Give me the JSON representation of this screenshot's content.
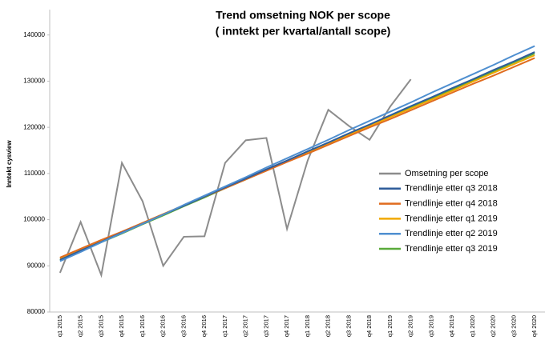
{
  "chart_data": {
    "type": "line",
    "title": "Trend omsetning NOK per scope",
    "subtitle": "( inntekt per kvartal/antall scope)",
    "y_label": "Inntekt cysview",
    "categories": [
      "q1 2015",
      "q2 2015",
      "q3 2015",
      "q4 2015",
      "q1 2016",
      "q2 2016",
      "q3 2016",
      "q4 2016",
      "q1 2017",
      "q2 2017",
      "q3 2017",
      "q4 2017",
      "q1 2018",
      "q2 2018",
      "q3 2018",
      "q4 2018",
      "q1 2019",
      "q2 2019",
      "q3 2019",
      "q4 2019",
      "q1 2020",
      "q2 2020",
      "q3 2020",
      "q4 2020"
    ],
    "series": [
      {
        "name": "Omsetning per scope",
        "color": "#8c8c8c",
        "values": [
          88500,
          99500,
          88000,
          112300,
          104000,
          90000,
          96300,
          96400,
          112300,
          117200,
          117700,
          98000,
          112800,
          123800,
          120300,
          117300,
          124500,
          130400,
          null,
          null,
          null,
          null,
          null,
          null
        ]
      },
      {
        "name": "Trendlinje etter q3 2018",
        "color": "#2e5c9a",
        "values": [
          91300,
          93300,
          95200,
          97200,
          99100,
          101100,
          103000,
          105000,
          107000,
          108900,
          110900,
          112800,
          114800,
          116700,
          118700,
          120600,
          122600,
          124600,
          126500,
          128500,
          130400,
          132400,
          134300,
          136300
        ]
      },
      {
        "name": "Trendlinje etter q4 2018",
        "color": "#e06c1f",
        "values": [
          91800,
          93700,
          95600,
          97400,
          99300,
          101200,
          103100,
          105000,
          106800,
          108700,
          110600,
          112500,
          114300,
          116200,
          118100,
          120000,
          121800,
          123700,
          125600,
          127500,
          129400,
          131200,
          133100,
          135000
        ]
      },
      {
        "name": "Trendlinje etter q1 2019",
        "color": "#f0a800",
        "values": [
          91600,
          93500,
          95400,
          97300,
          99300,
          101200,
          103100,
          105000,
          106900,
          108800,
          110700,
          112600,
          114600,
          116500,
          118400,
          120300,
          122200,
          124100,
          126000,
          127900,
          129900,
          131800,
          133700,
          135600
        ]
      },
      {
        "name": "Trendlinje etter q2 2019",
        "color": "#4f8fd0",
        "values": [
          91000,
          93000,
          95100,
          97100,
          99100,
          101100,
          103200,
          105200,
          107200,
          109200,
          111300,
          113300,
          115300,
          117300,
          119400,
          121400,
          123400,
          125400,
          127500,
          129500,
          131500,
          133500,
          135600,
          137600
        ]
      },
      {
        "name": "Trendlinje etter q3 2019",
        "color": "#5aaa3a",
        "values": [
          91200,
          93100,
          95100,
          97000,
          99000,
          100900,
          102900,
          104800,
          106800,
          108700,
          110700,
          112600,
          114600,
          116500,
          118500,
          120400,
          122400,
          124300,
          126300,
          128200,
          130200,
          132100,
          134100,
          136000
        ]
      }
    ],
    "ylim": [
      80000,
      145500
    ],
    "yticks": [
      80000,
      90000,
      100000,
      110000,
      120000,
      130000,
      140000
    ],
    "grid": false,
    "legend": "right"
  }
}
